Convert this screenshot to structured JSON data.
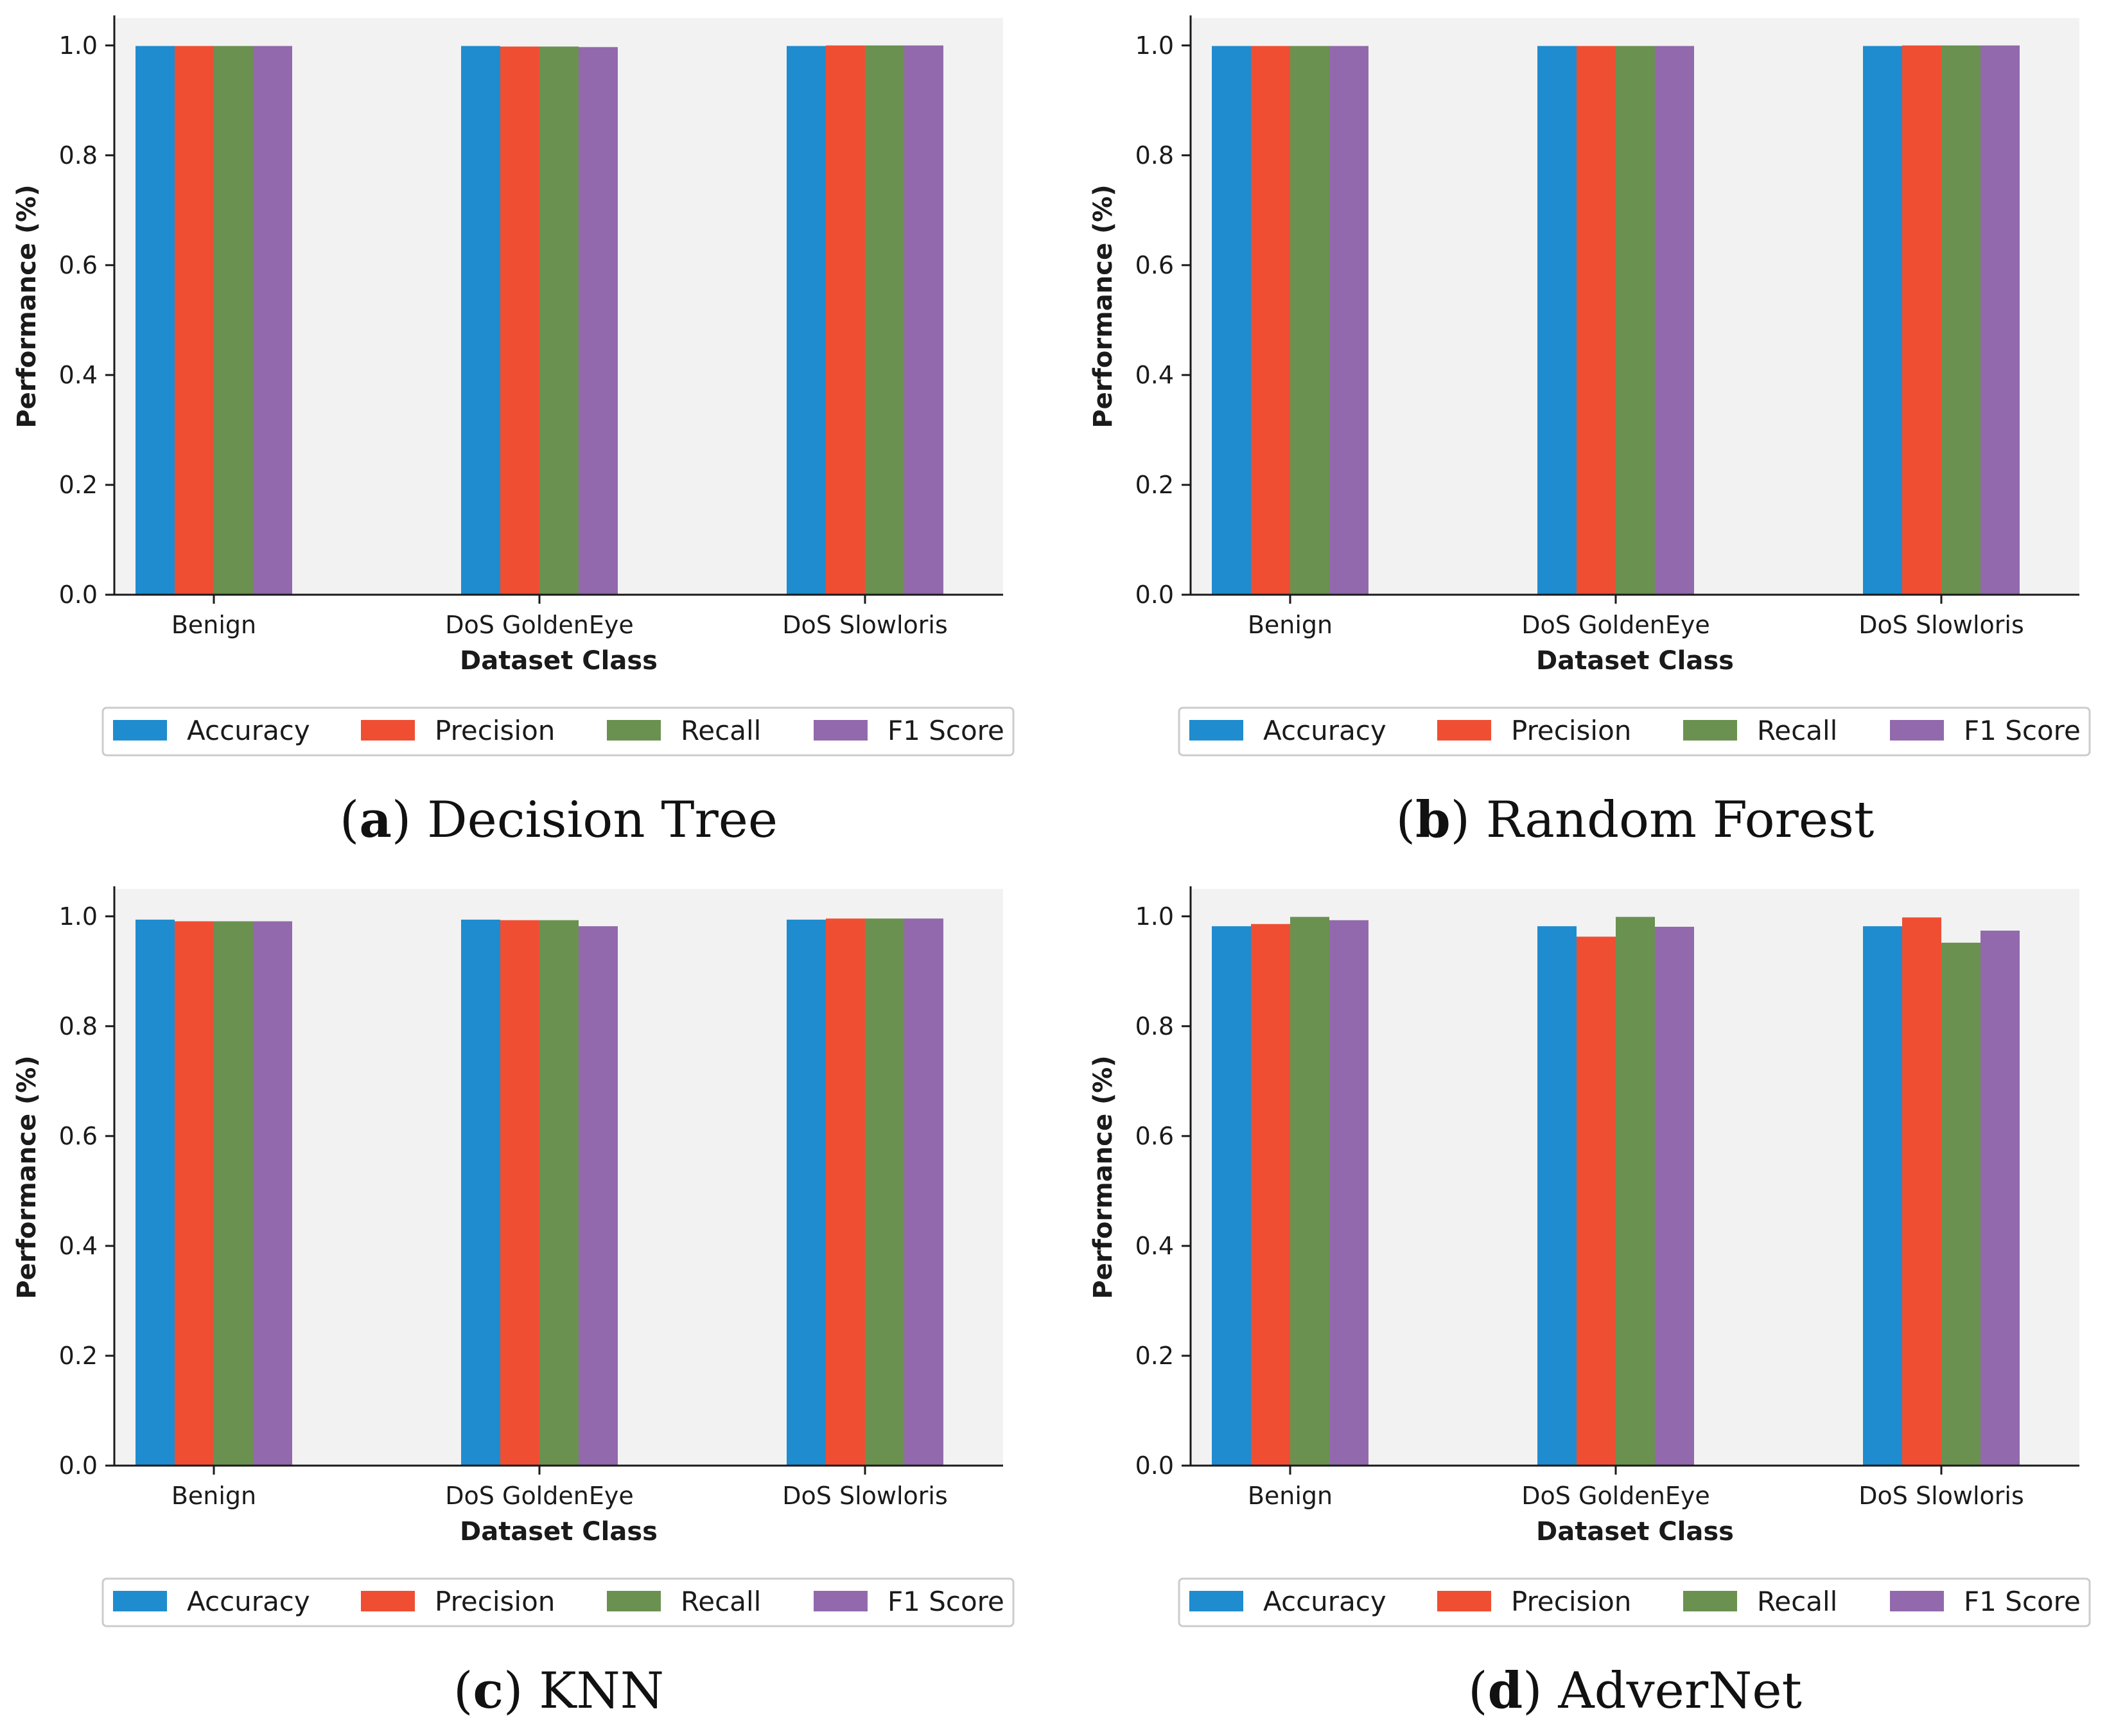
{
  "colors": {
    "Accuracy": "#1f8ccf",
    "Precision": "#ef4e33",
    "Recall": "#6a9150",
    "F1 Score": "#9269ac",
    "plot_background": "#f2f2f2",
    "axis": "#1a1a1a"
  },
  "chart_data": [
    {
      "type": "bar",
      "panel": "a",
      "caption": {
        "letter": "a",
        "title": "Decision Tree"
      },
      "xlabel": "Dataset Class",
      "ylabel": "Performance (%)",
      "ylim": [
        0,
        1.05
      ],
      "yticks": [
        "0.0",
        "0.2",
        "0.4",
        "0.6",
        "0.8",
        "1.0"
      ],
      "categories": [
        "Benign",
        "DoS GoldenEye",
        "DoS Slowloris"
      ],
      "legend": [
        "Accuracy",
        "Precision",
        "Recall",
        "F1 Score"
      ],
      "legend_position": "below",
      "series": [
        {
          "name": "Accuracy",
          "values": [
            0.999,
            0.999,
            0.999
          ]
        },
        {
          "name": "Precision",
          "values": [
            0.999,
            0.998,
            1.0
          ]
        },
        {
          "name": "Recall",
          "values": [
            0.999,
            0.998,
            1.0
          ]
        },
        {
          "name": "F1 Score",
          "values": [
            0.999,
            0.997,
            1.0
          ]
        }
      ]
    },
    {
      "type": "bar",
      "panel": "b",
      "caption": {
        "letter": "b",
        "title": "Random Forest"
      },
      "xlabel": "Dataset Class",
      "ylabel": "Performance (%)",
      "ylim": [
        0,
        1.05
      ],
      "yticks": [
        "0.0",
        "0.2",
        "0.4",
        "0.6",
        "0.8",
        "1.0"
      ],
      "categories": [
        "Benign",
        "DoS GoldenEye",
        "DoS Slowloris"
      ],
      "legend": [
        "Accuracy",
        "Precision",
        "Recall",
        "F1 Score"
      ],
      "legend_position": "below",
      "series": [
        {
          "name": "Accuracy",
          "values": [
            0.999,
            0.999,
            0.999
          ]
        },
        {
          "name": "Precision",
          "values": [
            0.999,
            0.999,
            1.0
          ]
        },
        {
          "name": "Recall",
          "values": [
            0.999,
            0.999,
            1.0
          ]
        },
        {
          "name": "F1 Score",
          "values": [
            0.999,
            0.999,
            1.0
          ]
        }
      ]
    },
    {
      "type": "bar",
      "panel": "c",
      "caption": {
        "letter": "c",
        "title": "KNN"
      },
      "xlabel": "Dataset Class",
      "ylabel": "Performance (%)",
      "ylim": [
        0,
        1.05
      ],
      "yticks": [
        "0.0",
        "0.2",
        "0.4",
        "0.6",
        "0.8",
        "1.0"
      ],
      "categories": [
        "Benign",
        "DoS GoldenEye",
        "DoS Slowloris"
      ],
      "legend": [
        "Accuracy",
        "Precision",
        "Recall",
        "F1 Score"
      ],
      "legend_position": "below",
      "series": [
        {
          "name": "Accuracy",
          "values": [
            0.994,
            0.994,
            0.994
          ]
        },
        {
          "name": "Precision",
          "values": [
            0.991,
            0.993,
            0.996
          ]
        },
        {
          "name": "Recall",
          "values": [
            0.991,
            0.993,
            0.996
          ]
        },
        {
          "name": "F1 Score",
          "values": [
            0.991,
            0.982,
            0.996
          ]
        }
      ]
    },
    {
      "type": "bar",
      "panel": "d",
      "caption": {
        "letter": "d",
        "title": "AdverNet"
      },
      "xlabel": "Dataset Class",
      "ylabel": "Performance (%)",
      "ylim": [
        0,
        1.05
      ],
      "yticks": [
        "0.0",
        "0.2",
        "0.4",
        "0.6",
        "0.8",
        "1.0"
      ],
      "categories": [
        "Benign",
        "DoS GoldenEye",
        "DoS Slowloris"
      ],
      "legend": [
        "Accuracy",
        "Precision",
        "Recall",
        "F1 Score"
      ],
      "legend_position": "below",
      "series": [
        {
          "name": "Accuracy",
          "values": [
            0.982,
            0.982,
            0.982
          ]
        },
        {
          "name": "Precision",
          "values": [
            0.986,
            0.963,
            0.998
          ]
        },
        {
          "name": "Recall",
          "values": [
            0.999,
            0.999,
            0.952
          ]
        },
        {
          "name": "F1 Score",
          "values": [
            0.993,
            0.981,
            0.974
          ]
        }
      ]
    }
  ]
}
